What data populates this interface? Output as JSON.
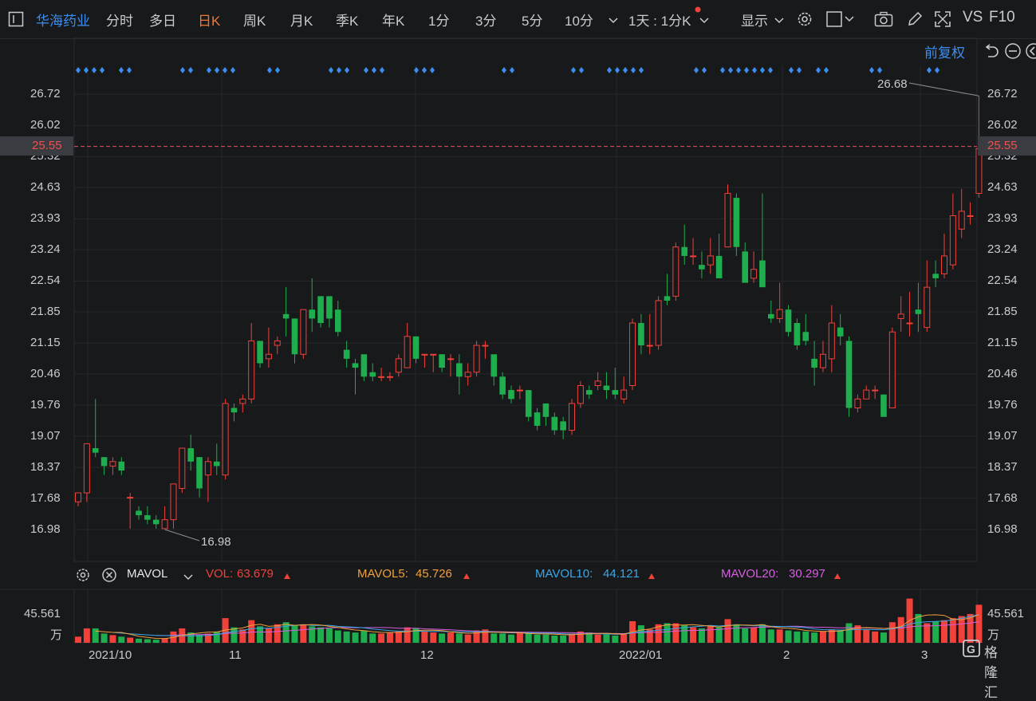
{
  "toolbar": {
    "stock_name": "华海药业",
    "tabs": [
      "分时",
      "多日",
      "日K",
      "周K",
      "月K",
      "季K",
      "年K",
      "1分",
      "3分",
      "5分",
      "10分"
    ],
    "active_tab": "日K",
    "period_label": "1天 : 1分K",
    "display_label": "显示",
    "vs_label": "VS",
    "f10_label": "F10"
  },
  "adjust_label": "前复权",
  "y_axis": {
    "ticks": [
      "26.72",
      "26.02",
      "25.32",
      "24.63",
      "23.93",
      "23.24",
      "22.54",
      "21.85",
      "21.15",
      "20.46",
      "19.76",
      "19.07",
      "18.37",
      "17.68",
      "16.98"
    ],
    "current_price": "25.55"
  },
  "annotations": {
    "high": "26.68",
    "low": "16.98"
  },
  "x_axis": {
    "labels": [
      "2021/10",
      "11",
      "12",
      "2022/01",
      "2",
      "3"
    ]
  },
  "volume": {
    "indicator": "MAVOL",
    "vol_label": "VOL:",
    "vol_value": "63.679",
    "ma5_label": "MAVOL5:",
    "ma5_value": "45.726",
    "ma10_label": "MAVOL10:",
    "ma10_value": "44.121",
    "ma20_label": "MAVOL20:",
    "ma20_value": "30.297",
    "axis_value": "45.561",
    "axis_unit": "万"
  },
  "colors": {
    "up": "#f0413b",
    "down": "#1fae4e",
    "accent": "#3d8ef0",
    "active_tab": "#f07832"
  },
  "brand": "格隆汇",
  "chart_data": {
    "type": "candlestick",
    "ylim": [
      16.6,
      27.2
    ],
    "candles": [
      [
        17.6,
        17.8,
        17.5,
        17.8
      ],
      [
        17.8,
        18.9,
        17.6,
        18.9
      ],
      [
        18.8,
        18.7,
        18.6,
        19.9
      ],
      [
        18.6,
        18.4,
        18.2,
        18.6
      ],
      [
        18.4,
        18.5,
        18.2,
        18.6
      ],
      [
        18.5,
        18.3,
        18.2,
        18.6
      ],
      [
        17.7,
        17.7,
        17.0,
        17.8
      ],
      [
        17.4,
        17.3,
        17.2,
        17.5
      ],
      [
        17.3,
        17.2,
        17.1,
        17.5
      ],
      [
        17.2,
        17.1,
        17.0,
        17.3
      ],
      [
        17.0,
        17.2,
        17.0,
        17.5
      ],
      [
        17.2,
        18.0,
        17.0,
        18.0
      ],
      [
        17.9,
        18.8,
        17.8,
        18.8
      ],
      [
        18.8,
        18.5,
        18.3,
        19.1
      ],
      [
        18.6,
        17.9,
        17.7,
        18.6
      ],
      [
        18.2,
        18.5,
        17.6,
        18.6
      ],
      [
        18.5,
        18.4,
        18.2,
        18.9
      ],
      [
        18.2,
        19.8,
        18.1,
        19.9
      ],
      [
        19.7,
        19.6,
        19.4,
        19.8
      ],
      [
        19.8,
        19.9,
        19.6,
        20.0
      ],
      [
        19.9,
        21.2,
        19.8,
        21.6
      ],
      [
        21.2,
        20.7,
        20.6,
        21.2
      ],
      [
        20.8,
        20.9,
        20.6,
        21.5
      ],
      [
        21.1,
        21.2,
        20.9,
        21.3
      ],
      [
        21.8,
        21.7,
        21.3,
        22.4
      ],
      [
        21.7,
        20.9,
        20.7,
        21.7
      ],
      [
        20.9,
        21.9,
        20.8,
        21.9
      ],
      [
        21.9,
        21.7,
        21.4,
        22.6
      ],
      [
        22.2,
        21.6,
        21.5,
        22.2
      ],
      [
        22.2,
        21.7,
        21.5,
        22.2
      ],
      [
        21.9,
        21.4,
        21.3,
        22.1
      ],
      [
        21.0,
        20.8,
        20.6,
        21.2
      ],
      [
        20.7,
        20.6,
        20.0,
        20.8
      ],
      [
        20.9,
        20.4,
        20.3,
        20.9
      ],
      [
        20.5,
        20.4,
        20.3,
        20.7
      ],
      [
        20.4,
        20.4,
        20.3,
        20.6
      ],
      [
        20.4,
        20.4,
        20.3,
        20.5
      ],
      [
        20.5,
        20.8,
        20.4,
        20.9
      ],
      [
        20.6,
        21.3,
        20.6,
        21.6
      ],
      [
        21.3,
        20.8,
        20.7,
        21.3
      ],
      [
        20.9,
        20.9,
        20.6,
        20.9
      ],
      [
        20.9,
        20.9,
        20.5,
        20.9
      ],
      [
        20.9,
        20.6,
        20.5,
        20.9
      ],
      [
        20.8,
        20.8,
        20.4,
        20.9
      ],
      [
        20.7,
        20.4,
        20.0,
        20.9
      ],
      [
        20.4,
        20.5,
        20.2,
        20.7
      ],
      [
        20.5,
        21.1,
        20.4,
        21.2
      ],
      [
        21.1,
        21.1,
        20.8,
        21.2
      ],
      [
        20.9,
        20.4,
        20.2,
        20.9
      ],
      [
        20.4,
        20.0,
        19.9,
        20.5
      ],
      [
        20.1,
        19.9,
        19.8,
        20.2
      ],
      [
        20.1,
        20.1,
        19.9,
        20.2
      ],
      [
        20.1,
        19.5,
        19.4,
        20.1
      ],
      [
        19.6,
        19.3,
        19.2,
        19.7
      ],
      [
        19.8,
        19.5,
        19.3,
        19.8
      ],
      [
        19.5,
        19.2,
        19.1,
        19.6
      ],
      [
        19.4,
        19.2,
        19.0,
        19.5
      ],
      [
        19.2,
        19.8,
        19.1,
        19.9
      ],
      [
        19.8,
        20.2,
        19.7,
        20.3
      ],
      [
        20.1,
        20.0,
        19.9,
        20.2
      ],
      [
        20.2,
        20.3,
        20.1,
        20.5
      ],
      [
        20.2,
        20.1,
        19.9,
        20.5
      ],
      [
        20.1,
        20.0,
        19.9,
        20.6
      ],
      [
        19.9,
        20.1,
        19.8,
        20.4
      ],
      [
        20.2,
        21.6,
        20.1,
        21.7
      ],
      [
        21.6,
        21.1,
        20.9,
        21.8
      ],
      [
        21.1,
        21.1,
        20.9,
        21.8
      ],
      [
        21.1,
        22.1,
        21.0,
        22.2
      ],
      [
        22.2,
        22.1,
        22.0,
        22.7
      ],
      [
        22.2,
        23.3,
        22.1,
        23.4
      ],
      [
        23.3,
        23.1,
        22.9,
        23.8
      ],
      [
        23.1,
        23.1,
        22.9,
        23.5
      ],
      [
        22.9,
        22.8,
        22.6,
        23.2
      ],
      [
        22.9,
        23.1,
        22.7,
        23.5
      ],
      [
        23.1,
        22.6,
        22.6,
        23.6
      ],
      [
        23.3,
        24.5,
        23.3,
        24.7
      ],
      [
        24.4,
        23.3,
        23.1,
        24.5
      ],
      [
        23.2,
        22.5,
        22.5,
        23.4
      ],
      [
        22.6,
        22.8,
        22.5,
        23.2
      ],
      [
        23.0,
        22.4,
        22.4,
        24.5
      ],
      [
        21.8,
        21.7,
        21.6,
        22.1
      ],
      [
        21.7,
        21.9,
        21.6,
        22.5
      ],
      [
        21.9,
        21.4,
        21.3,
        22.0
      ],
      [
        21.6,
        21.1,
        21.0,
        21.7
      ],
      [
        21.4,
        21.2,
        21.1,
        21.8
      ],
      [
        20.8,
        20.6,
        20.2,
        21.2
      ],
      [
        20.6,
        20.9,
        20.5,
        21.2
      ],
      [
        20.8,
        21.6,
        20.5,
        22.0
      ],
      [
        21.5,
        21.3,
        21.1,
        21.8
      ],
      [
        21.2,
        19.7,
        19.5,
        21.3
      ],
      [
        19.7,
        19.9,
        19.6,
        20.0
      ],
      [
        19.9,
        20.1,
        19.9,
        20.2
      ],
      [
        20.1,
        20.1,
        19.9,
        20.2
      ],
      [
        20.0,
        19.5,
        19.5,
        20.0
      ],
      [
        19.7,
        21.4,
        19.7,
        21.5
      ],
      [
        21.7,
        21.8,
        21.4,
        22.2
      ],
      [
        21.6,
        21.6,
        21.3,
        22.3
      ],
      [
        21.9,
        21.8,
        21.4,
        22.5
      ],
      [
        21.5,
        22.4,
        21.4,
        23.0
      ],
      [
        22.7,
        22.6,
        22.4,
        23.0
      ],
      [
        22.7,
        23.1,
        22.6,
        23.6
      ],
      [
        22.9,
        24.0,
        22.8,
        24.5
      ],
      [
        23.7,
        24.1,
        23.5,
        24.6
      ],
      [
        24.0,
        24.0,
        23.8,
        24.3
      ],
      [
        24.5,
        25.5,
        24.4,
        26.68
      ]
    ],
    "volumes": [
      12,
      28,
      28,
      18,
      15,
      12,
      10,
      8,
      7,
      6,
      9,
      22,
      28,
      20,
      16,
      18,
      22,
      48,
      30,
      26,
      44,
      32,
      28,
      36,
      40,
      34,
      36,
      32,
      30,
      28,
      24,
      22,
      20,
      24,
      18,
      18,
      20,
      22,
      30,
      28,
      22,
      20,
      18,
      20,
      18,
      16,
      24,
      26,
      18,
      18,
      16,
      20,
      18,
      16,
      16,
      14,
      14,
      18,
      22,
      20,
      16,
      16,
      14,
      18,
      42,
      34,
      26,
      36,
      38,
      38,
      34,
      30,
      28,
      32,
      30,
      46,
      36,
      28,
      30,
      36,
      26,
      26,
      24,
      22,
      22,
      20,
      22,
      26,
      24,
      38,
      34,
      26,
      22,
      20,
      40,
      50,
      86,
      56,
      38,
      42,
      44,
      48,
      52,
      56,
      74
    ],
    "ma5_start": 2,
    "ma10_start": 4,
    "ma20_start": 9
  }
}
